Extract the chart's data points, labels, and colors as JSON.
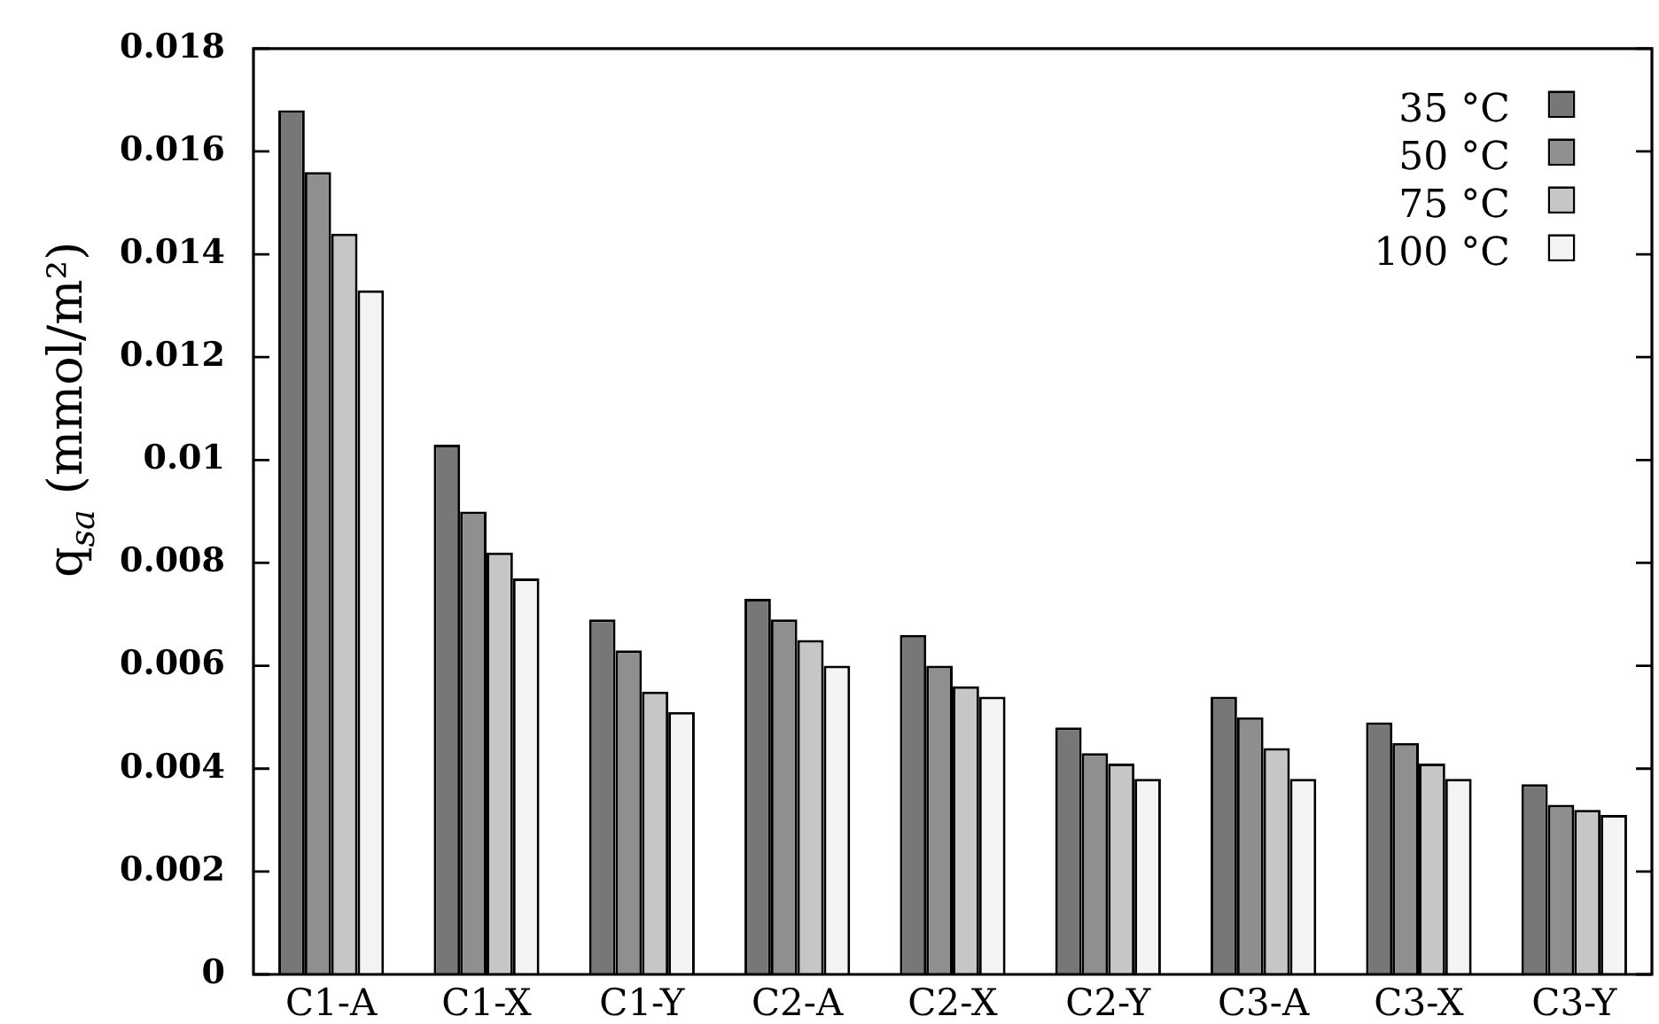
{
  "chart_data": {
    "type": "bar",
    "ylabel": "q$_{sa}$ (mmol/m²)",
    "categories": [
      "C1-A",
      "C1-X",
      "C1-Y",
      "C2-A",
      "C2-X",
      "C2-Y",
      "C3-A",
      "C3-X",
      "C3-Y"
    ],
    "series": [
      {
        "name": "35 °C",
        "color": "#777777",
        "values": [
          0.0168,
          0.0103,
          0.0069,
          0.0073,
          0.0066,
          0.0048,
          0.0054,
          0.0049,
          0.0037
        ]
      },
      {
        "name": "50 °C",
        "color": "#8f8f8f",
        "values": [
          0.0156,
          0.009,
          0.0063,
          0.0069,
          0.006,
          0.0043,
          0.005,
          0.0045,
          0.0033
        ]
      },
      {
        "name": "75 °C",
        "color": "#c6c6c6",
        "values": [
          0.0144,
          0.0082,
          0.0055,
          0.0065,
          0.0056,
          0.0041,
          0.0044,
          0.0041,
          0.0032
        ]
      },
      {
        "name": "100 °C",
        "color": "#f4f4f4",
        "values": [
          0.0133,
          0.0077,
          0.0051,
          0.006,
          0.0054,
          0.0038,
          0.0038,
          0.0038,
          0.0031
        ]
      }
    ],
    "ylim": [
      0,
      0.018
    ],
    "yticks": [
      0,
      0.002,
      0.004,
      0.006,
      0.008,
      0.01,
      0.012,
      0.014,
      0.016,
      0.018
    ],
    "legend": "top right"
  }
}
